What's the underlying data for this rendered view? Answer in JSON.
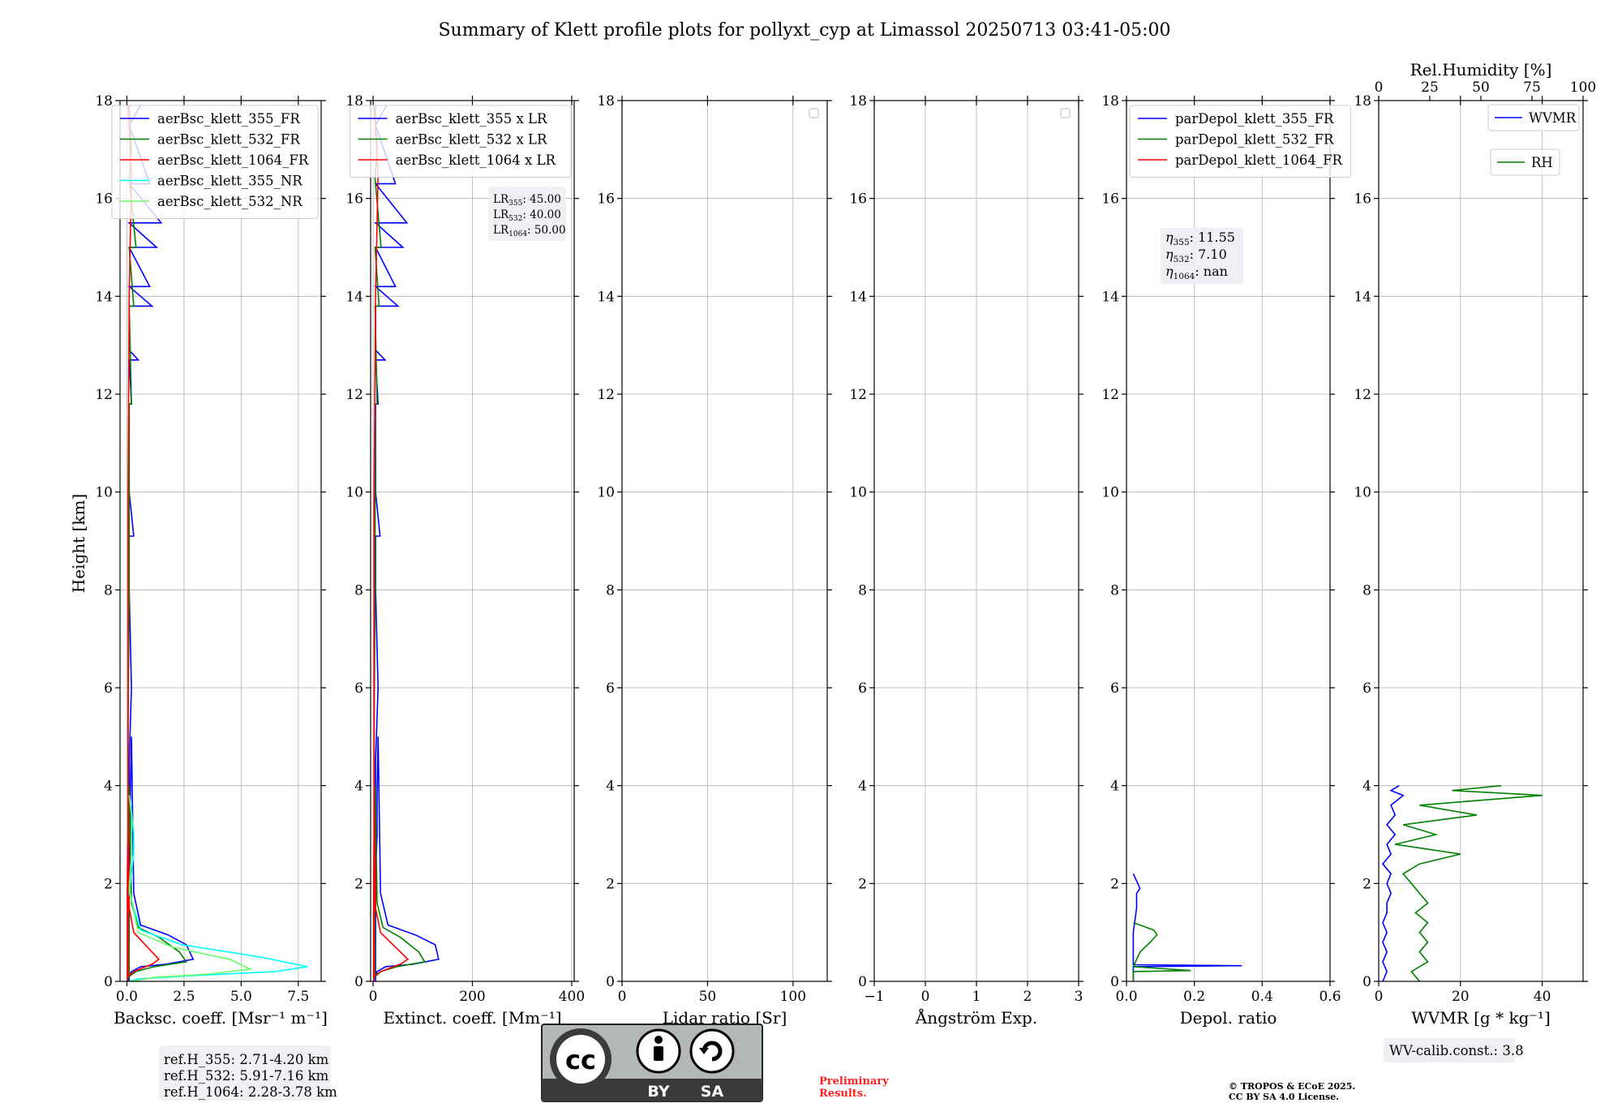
{
  "figure": {
    "title": "Summary of Klett profile plots for pollyxt_cyp at Limassol 20250713 03:41-05:00",
    "ylabel": "Height [km]"
  },
  "chart_data": [
    {
      "id": "backscatter",
      "type": "line",
      "xlabel": "Backsc. coeff. [Msr⁻¹ m⁻¹]",
      "xlim": [
        -0.3,
        8.5
      ],
      "ylim": [
        0,
        18
      ],
      "xticks": [
        0,
        2.5,
        5,
        7.5
      ],
      "xticklabels": [
        "0.0",
        "2.5",
        "5.0",
        "7.5"
      ],
      "yticks": [
        0,
        2,
        4,
        6,
        8,
        10,
        12,
        14,
        16,
        18
      ],
      "grid": true,
      "legend_position": "top-right",
      "series": [
        {
          "name": "aerBsc_klett_355_FR",
          "color": "#0000ff",
          "x": [
            0.1,
            0.1,
            0.15,
            0.15,
            0.2,
            0.3,
            0.6,
            1.8,
            2.6,
            2.9,
            1.7,
            0.6,
            0.2,
            0.1,
            0.1,
            0.2,
            0.1,
            0.1,
            0.3,
            0.1,
            0.1,
            0.2,
            0.1,
            0.5,
            0.1,
            0.1,
            1.1,
            0.1,
            1.0,
            0.1,
            1.3,
            0.1,
            1.5,
            0.1,
            1.0,
            0.1,
            0.6
          ],
          "y": [
            0,
            2.2,
            3,
            3.8,
            5,
            1.8,
            1.15,
            0.95,
            0.75,
            0.45,
            0.35,
            0.3,
            0.2,
            0.1,
            4.5,
            6,
            8,
            9.1,
            9.1,
            10,
            11.8,
            11.8,
            12.7,
            12.7,
            12.9,
            13.8,
            13.8,
            14.2,
            14.2,
            15,
            15,
            15.5,
            15.5,
            16.3,
            16.3,
            17.5,
            17.9
          ]
        },
        {
          "name": "aerBsc_klett_532_FR",
          "color": "#008000",
          "x": [
            0.05,
            0.05,
            0.1,
            0.1,
            0.2,
            0.5,
            1.4,
            2.3,
            2.6,
            1.2,
            0.4,
            0.1,
            0.05,
            0.1,
            0.1,
            0.2,
            0.1,
            0.3,
            0.1,
            0.4,
            0.1,
            0.2,
            0.1
          ],
          "y": [
            0,
            2.2,
            3,
            4,
            1.6,
            1.1,
            0.9,
            0.6,
            0.4,
            0.3,
            0.2,
            0.1,
            5,
            8,
            11.8,
            11.8,
            13.8,
            13.8,
            15,
            15,
            16.4,
            17,
            17.9
          ]
        },
        {
          "name": "aerBsc_klett_1064_FR",
          "color": "#ff0000",
          "x": [
            0.02,
            0.02,
            0.05,
            0.05,
            0.1,
            0.3,
            0.8,
            1.4,
            1.1,
            0.3,
            0.05,
            0.05,
            0.05,
            0.1,
            0.2,
            0.05
          ],
          "y": [
            0,
            2,
            3,
            4,
            1.5,
            1.0,
            0.75,
            0.45,
            0.35,
            0.2,
            0.1,
            6,
            10,
            14,
            16.5,
            17.9
          ]
        },
        {
          "name": "aerBsc_klett_355_NR",
          "color": "#00ffff",
          "x": [
            0.1,
            0.2,
            0.3,
            0.3,
            0.2,
            0.1,
            0.6,
            2.4,
            5.8,
            7.9,
            6.5,
            3.0,
            0.5,
            0.1
          ],
          "y": [
            3.8,
            3.5,
            3.0,
            2.6,
            2.2,
            1.8,
            1.05,
            0.75,
            0.5,
            0.3,
            0.2,
            0.12,
            0.05,
            0
          ]
        },
        {
          "name": "aerBsc_klett_532_NR",
          "color": "#66ff66",
          "x": [
            0.1,
            0.2,
            0.2,
            0.1,
            0.5,
            2.0,
            4.5,
            5.4,
            3.6,
            1.2,
            0.2
          ],
          "y": [
            3.8,
            3.4,
            2.6,
            1.9,
            1.0,
            0.7,
            0.45,
            0.25,
            0.15,
            0.08,
            0
          ]
        }
      ],
      "annotations": [
        "ref.H_355: 2.71-4.20 km",
        "ref.H_532: 5.91-7.16 km",
        "ref.H_1064: 2.28-3.78 km"
      ]
    },
    {
      "id": "extinction",
      "type": "line",
      "xlabel": "Extinct. coeff. [Mm⁻¹]",
      "xlim": [
        -5,
        405
      ],
      "ylim": [
        0,
        18
      ],
      "xticks": [
        0,
        200,
        400
      ],
      "xticklabels": [
        "0",
        "200",
        "400"
      ],
      "yticks": [
        0,
        2,
        4,
        6,
        8,
        10,
        12,
        14,
        16,
        18
      ],
      "grid": true,
      "legend_position": "top-right",
      "series": [
        {
          "name": "aerBsc_klett_355 x LR",
          "color": "#0000ff",
          "x": [
            5,
            5,
            8,
            8,
            10,
            15,
            30,
            85,
            125,
            132,
            80,
            25,
            8,
            5,
            5,
            10,
            5,
            5,
            14,
            5,
            5,
            10,
            5,
            24,
            5,
            5,
            50,
            5,
            45,
            5,
            60,
            5,
            68,
            5,
            45,
            5,
            27
          ],
          "y": [
            0,
            2.2,
            3,
            3.8,
            5,
            1.8,
            1.15,
            0.95,
            0.75,
            0.45,
            0.35,
            0.3,
            0.2,
            0.1,
            4.5,
            6,
            8,
            9.1,
            9.1,
            10,
            11.8,
            11.8,
            12.7,
            12.7,
            12.9,
            13.8,
            13.8,
            14.2,
            14.2,
            15,
            15,
            15.5,
            15.5,
            16.3,
            16.3,
            17.5,
            17.9
          ]
        },
        {
          "name": "aerBsc_klett_532 x LR",
          "color": "#008000",
          "x": [
            2,
            2,
            4,
            4,
            8,
            20,
            55,
            92,
            104,
            48,
            16,
            4,
            2,
            4,
            4,
            8,
            4,
            12,
            4,
            16,
            4,
            8,
            4
          ],
          "y": [
            0,
            2.2,
            3,
            4,
            1.6,
            1.1,
            0.9,
            0.6,
            0.4,
            0.3,
            0.2,
            0.1,
            5,
            8,
            11.8,
            11.8,
            13.8,
            13.8,
            15,
            15,
            16.4,
            17,
            17.9
          ]
        },
        {
          "name": "aerBsc_klett_1064 x LR",
          "color": "#ff0000",
          "x": [
            1,
            1,
            2,
            2,
            5,
            15,
            40,
            70,
            55,
            15,
            2,
            2,
            2,
            5,
            10,
            2
          ],
          "y": [
            0,
            2,
            3,
            4,
            1.5,
            1.0,
            0.75,
            0.45,
            0.35,
            0.2,
            0.1,
            6,
            10,
            14,
            16.5,
            17.9
          ]
        }
      ],
      "annotations": [
        "LR",
        "355",
        ": 45.00",
        "LR",
        "532",
        ": 40.00",
        "LR",
        "1064",
        ": 50.00"
      ]
    },
    {
      "id": "lidar-ratio",
      "type": "line",
      "xlabel": "Lidar ratio [Sr]",
      "xlim": [
        0,
        120
      ],
      "ylim": [
        0,
        18
      ],
      "xticks": [
        0,
        50,
        100
      ],
      "xticklabels": [
        "0",
        "50",
        "100"
      ],
      "yticks": [
        0,
        2,
        4,
        6,
        8,
        10,
        12,
        14,
        16,
        18
      ],
      "grid": true,
      "legend_position": "top-right",
      "series": []
    },
    {
      "id": "angstrom",
      "type": "line",
      "xlabel": "Ångström Exp.",
      "xlim": [
        -1,
        3
      ],
      "ylim": [
        0,
        18
      ],
      "xticks": [
        -1,
        0,
        1,
        2,
        3
      ],
      "xticklabels": [
        "−1",
        "0",
        "1",
        "2",
        "3"
      ],
      "yticks": [
        0,
        2,
        4,
        6,
        8,
        10,
        12,
        14,
        16,
        18
      ],
      "grid": true,
      "legend_position": "top-right",
      "series": []
    },
    {
      "id": "depol",
      "type": "line",
      "xlabel": "Depol. ratio",
      "xlim": [
        0,
        0.6
      ],
      "ylim": [
        0,
        18
      ],
      "xticks": [
        0,
        0.2,
        0.4,
        0.6
      ],
      "xticklabels": [
        "0.0",
        "0.2",
        "0.4",
        "0.6"
      ],
      "yticks": [
        0,
        2,
        4,
        6,
        8,
        10,
        12,
        14,
        16,
        18
      ],
      "grid": true,
      "legend_position": "top-left",
      "series": [
        {
          "name": "parDepol_klett_355_FR",
          "color": "#0000ff",
          "x": [
            0.02,
            0.02,
            0.34,
            0.02,
            0.02,
            0.03,
            0.03,
            0.04,
            0.02
          ],
          "y": [
            0,
            0.3,
            0.32,
            0.34,
            1.0,
            1.5,
            1.8,
            1.9,
            2.2
          ]
        },
        {
          "name": "parDepol_klett_532_FR",
          "color": "#008000",
          "x": [
            0.02,
            0.02,
            0.19,
            0.02,
            0.04,
            0.07,
            0.09,
            0.08,
            0.02
          ],
          "y": [
            0,
            0.2,
            0.22,
            0.3,
            0.6,
            0.8,
            0.95,
            1.05,
            1.2
          ]
        },
        {
          "name": "parDepol_klett_1064_FR",
          "color": "#ff0000",
          "x": [],
          "y": []
        }
      ],
      "annotations": [
        "η",
        "355",
        ": 11.55",
        "η",
        "532",
        ": 7.10",
        "η",
        "1064",
        ": nan"
      ]
    },
    {
      "id": "wvmr",
      "type": "line",
      "xlabel": "WVMR [g * kg⁻¹]",
      "xlim": [
        0,
        50
      ],
      "ylim": [
        0,
        18
      ],
      "xticks": [
        0,
        20,
        40
      ],
      "xticklabels": [
        "0",
        "20",
        "40"
      ],
      "x2label": "Rel.Humidity [%]",
      "x2lim": [
        0,
        100
      ],
      "x2ticks": [
        0,
        25,
        50,
        75,
        100
      ],
      "x2ticklabels": [
        "0",
        "25",
        "50",
        "75",
        "100"
      ],
      "yticks": [
        0,
        2,
        4,
        6,
        8,
        10,
        12,
        14,
        16,
        18
      ],
      "grid": true,
      "legend_position": "top-right",
      "series": [
        {
          "name": "WVMR",
          "color": "#0000ff",
          "x": [
            1,
            2,
            1,
            2,
            1,
            2,
            1,
            2,
            2,
            3,
            2,
            3,
            1,
            3,
            2,
            4,
            2,
            4,
            3,
            6,
            3,
            5
          ],
          "y": [
            0,
            0.2,
            0.4,
            0.6,
            0.8,
            1.0,
            1.2,
            1.4,
            1.6,
            1.8,
            2.0,
            2.2,
            2.4,
            2.6,
            2.8,
            3.0,
            3.2,
            3.4,
            3.6,
            3.8,
            3.9,
            4.0
          ]
        },
        {
          "name": "RH",
          "color": "#008000",
          "x": [
            10,
            8,
            12,
            10,
            12,
            10,
            12,
            9,
            12,
            10,
            8,
            6,
            10,
            20,
            4,
            14,
            6,
            24,
            10,
            40,
            18,
            30
          ],
          "y": [
            0,
            0.2,
            0.4,
            0.6,
            0.8,
            1.0,
            1.2,
            1.4,
            1.6,
            1.8,
            2.0,
            2.2,
            2.4,
            2.6,
            2.8,
            3.0,
            3.2,
            3.4,
            3.6,
            3.8,
            3.9,
            4.0
          ]
        }
      ],
      "annotations": [
        "WV-calib.const.: 3.8"
      ]
    }
  ],
  "license_badge": {
    "by": "BY",
    "sa": "SA"
  },
  "footer": {
    "preliminary_line1": "Preliminary",
    "preliminary_line2": "Results.",
    "copyright_line1": "© TROPOS & ECoE 2025.",
    "copyright_line2": "CC BY SA 4.0 License."
  },
  "colors": {
    "blue": "#0000ff",
    "green": "#008000",
    "red": "#ff0000",
    "cyan": "#00ffff",
    "lightgreen": "#66ff66",
    "badge_gray": "#b4b8b4",
    "badge_dark": "#3a3a3a",
    "preliminary": "#ff2020"
  }
}
